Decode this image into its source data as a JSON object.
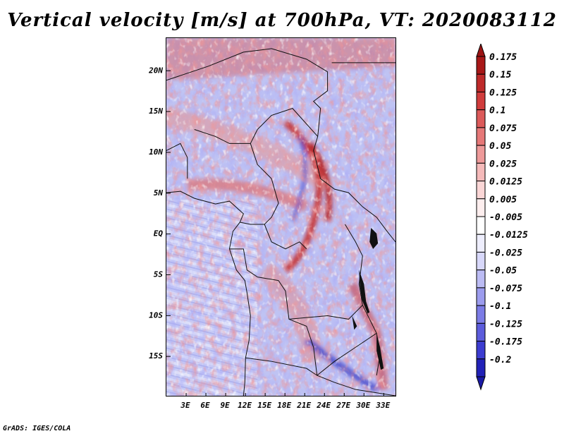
{
  "title": "Vertical velocity [m/s] at 700hPa, VT: 2020083112",
  "footer": "GrADS: IGES/COLA",
  "map": {
    "variable": "Vertical velocity",
    "units": "m/s",
    "level": "700hPa",
    "valid_time": "2020083112",
    "lon_range": [
      0,
      35
    ],
    "lat_range": [
      -20,
      24
    ],
    "lat_ticks": [
      {
        "value": 20,
        "label": "20N"
      },
      {
        "value": 15,
        "label": "15N"
      },
      {
        "value": 10,
        "label": "10N"
      },
      {
        "value": 5,
        "label": "5N"
      },
      {
        "value": 0,
        "label": "EQ"
      },
      {
        "value": -5,
        "label": "5S"
      },
      {
        "value": -10,
        "label": "10S"
      },
      {
        "value": -15,
        "label": "15S"
      }
    ],
    "lon_ticks": [
      {
        "value": 3,
        "label": "3E"
      },
      {
        "value": 6,
        "label": "6E"
      },
      {
        "value": 9,
        "label": "9E"
      },
      {
        "value": 12,
        "label": "12E"
      },
      {
        "value": 15,
        "label": "15E"
      },
      {
        "value": 18,
        "label": "18E"
      },
      {
        "value": 21,
        "label": "21E"
      },
      {
        "value": 24,
        "label": "24E"
      },
      {
        "value": 27,
        "label": "27E"
      },
      {
        "value": 30,
        "label": "30E"
      },
      {
        "value": 33,
        "label": "33E"
      }
    ]
  },
  "colorbar": {
    "levels": [
      {
        "label": "0.175",
        "color": "#a81818"
      },
      {
        "label": "0.15",
        "color": "#be2a2a"
      },
      {
        "label": "0.125",
        "color": "#d03c3c"
      },
      {
        "label": "0.1",
        "color": "#dc5a5a"
      },
      {
        "label": "0.075",
        "color": "#e67878"
      },
      {
        "label": "0.05",
        "color": "#ee9a9a"
      },
      {
        "label": "0.025",
        "color": "#f5baba"
      },
      {
        "label": "0.0125",
        "color": "#fad6d6"
      },
      {
        "label": "0.005",
        "color": "#fdeeee"
      },
      {
        "label": "-0.005",
        "color": "#ffffff"
      },
      {
        "label": "-0.0125",
        "color": "#eeeefd"
      },
      {
        "label": "-0.025",
        "color": "#d8d8fa"
      },
      {
        "label": "-0.05",
        "color": "#bcbcf4"
      },
      {
        "label": "-0.075",
        "color": "#9c9cee"
      },
      {
        "label": "-0.1",
        "color": "#7c7ce6"
      },
      {
        "label": "-0.125",
        "color": "#5c5cdc"
      },
      {
        "label": "-0.175",
        "color": "#3c3cd0"
      },
      {
        "label": "-0.2",
        "color": "#2222b8"
      }
    ],
    "top_arrow_color": "#9c1414",
    "bottom_arrow_color": "#1a1aa6"
  }
}
